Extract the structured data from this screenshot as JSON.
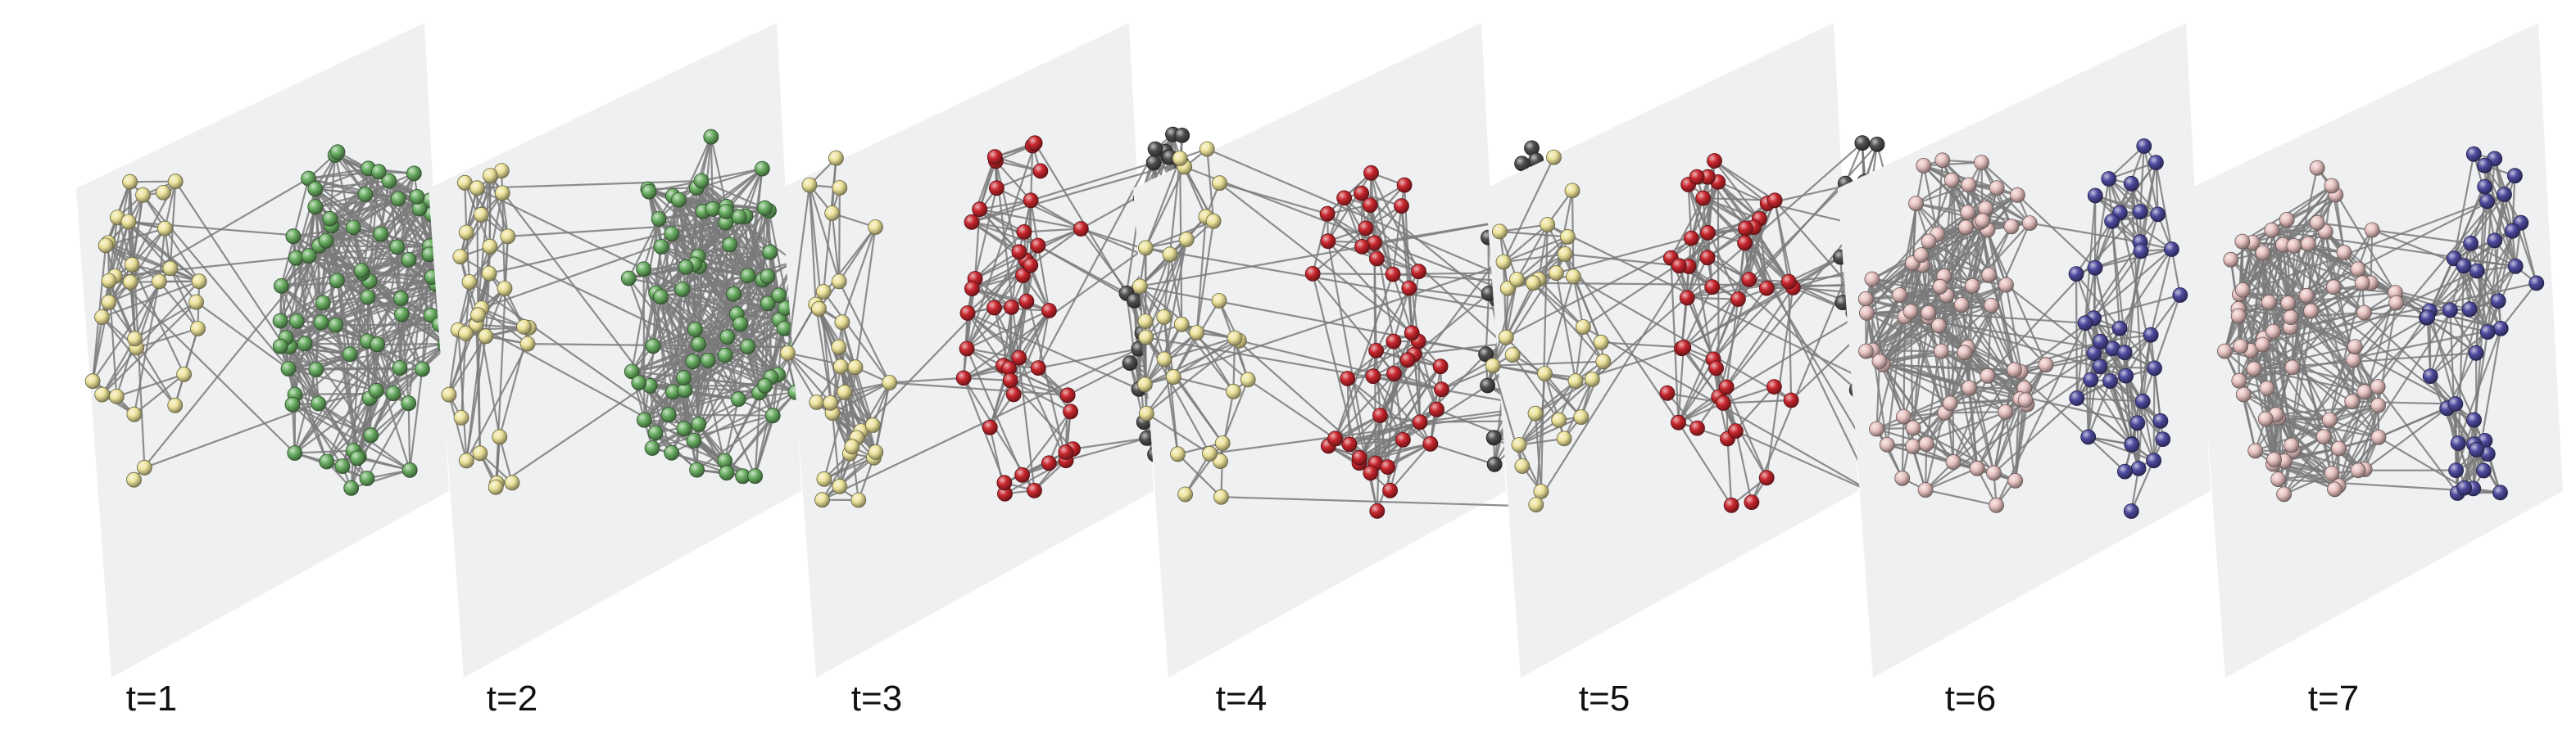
{
  "figure": {
    "panels": [
      {
        "label": "t=1",
        "communities": [
          {
            "color": "#ece39a",
            "nodes": 30
          },
          {
            "color": "#6aae63",
            "nodes": 78
          }
        ]
      },
      {
        "label": "t=2",
        "communities": [
          {
            "color": "#ece39a",
            "nodes": 30
          },
          {
            "color": "#6aae63",
            "nodes": 78
          }
        ]
      },
      {
        "label": "t=3",
        "communities": [
          {
            "color": "#ece39a",
            "nodes": 30
          },
          {
            "color": "#c8262d",
            "nodes": 42
          },
          {
            "color": "#4f4f4f",
            "nodes": 38
          }
        ]
      },
      {
        "label": "t=4",
        "communities": [
          {
            "color": "#ece39a",
            "nodes": 30
          },
          {
            "color": "#c8262d",
            "nodes": 42
          },
          {
            "color": "#4f4f4f",
            "nodes": 38
          }
        ]
      },
      {
        "label": "t=5",
        "communities": [
          {
            "color": "#ece39a",
            "nodes": 30
          },
          {
            "color": "#c8262d",
            "nodes": 42
          },
          {
            "color": "#4f4f4f",
            "nodes": 38
          }
        ]
      },
      {
        "label": "t=6",
        "communities": [
          {
            "color": "#e7c3c1",
            "nodes": 70
          },
          {
            "color": "#4e4a9e",
            "nodes": 40
          }
        ]
      },
      {
        "label": "t=7",
        "communities": [
          {
            "color": "#e7c3c1",
            "nodes": 70
          },
          {
            "color": "#4e4a9e",
            "nodes": 40
          }
        ]
      }
    ],
    "colors": {
      "plane": "#eff0f2",
      "edge": "#7a7a7a",
      "label": "#111111"
    }
  }
}
